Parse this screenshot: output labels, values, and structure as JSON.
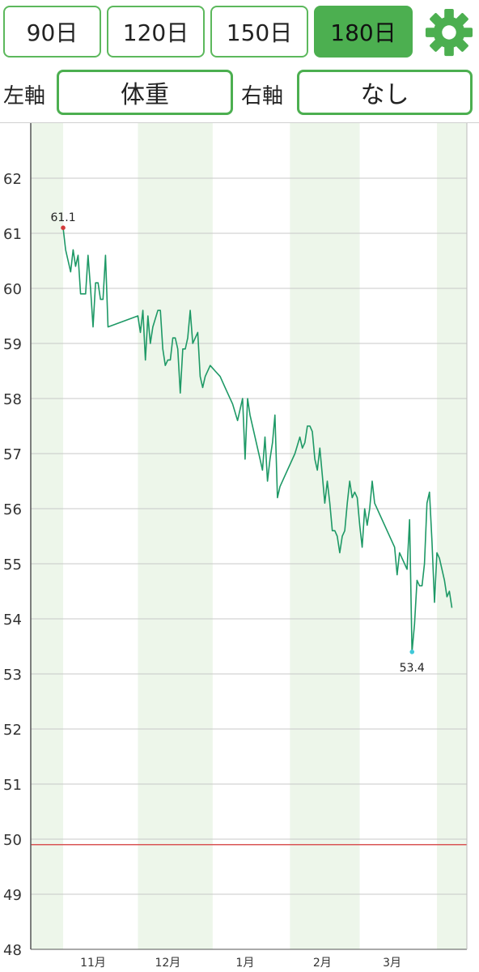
{
  "toolbar": {
    "ranges": [
      {
        "label": "90日",
        "active": false
      },
      {
        "label": "120日",
        "active": false
      },
      {
        "label": "150日",
        "active": false
      },
      {
        "label": "180日",
        "active": true
      }
    ],
    "settings_icon": "gear-icon",
    "accent_color": "#4caf50"
  },
  "axes": {
    "left_label": "左軸",
    "left_value": "体重",
    "right_label": "右軸",
    "right_value": "なし"
  },
  "chart_data": {
    "type": "line",
    "series": [
      {
        "values_by_day": [
          [
            0,
            61.1
          ],
          [
            1,
            60.7
          ],
          [
            2,
            60.5
          ],
          [
            3,
            60.3
          ],
          [
            4,
            60.7
          ],
          [
            5,
            60.4
          ],
          [
            6,
            60.6
          ],
          [
            7,
            59.9
          ],
          [
            9,
            59.9
          ],
          [
            10,
            60.6
          ],
          [
            11,
            60.0
          ],
          [
            12,
            59.3
          ],
          [
            13,
            60.1
          ],
          [
            14,
            60.1
          ],
          [
            15,
            59.8
          ],
          [
            16,
            59.8
          ],
          [
            17,
            60.6
          ],
          [
            18,
            59.3
          ],
          [
            30,
            59.5
          ],
          [
            31,
            59.2
          ],
          [
            32,
            59.6
          ],
          [
            33,
            58.7
          ],
          [
            34,
            59.5
          ],
          [
            35,
            59.0
          ],
          [
            36,
            59.3
          ],
          [
            38,
            59.6
          ],
          [
            39,
            59.6
          ],
          [
            40,
            58.9
          ],
          [
            41,
            58.6
          ],
          [
            42,
            58.7
          ],
          [
            43,
            58.7
          ],
          [
            44,
            59.1
          ],
          [
            45,
            59.1
          ],
          [
            46,
            58.9
          ],
          [
            47,
            58.1
          ],
          [
            48,
            58.9
          ],
          [
            49,
            58.9
          ],
          [
            50,
            59.1
          ],
          [
            51,
            59.6
          ],
          [
            52,
            59.0
          ],
          [
            54,
            59.2
          ],
          [
            55,
            58.4
          ],
          [
            56,
            58.2
          ],
          [
            57,
            58.4
          ],
          [
            59,
            58.6
          ],
          [
            61,
            58.5
          ],
          [
            63,
            58.4
          ],
          [
            65,
            58.2
          ],
          [
            68,
            57.9
          ],
          [
            70,
            57.6
          ],
          [
            72,
            58.0
          ],
          [
            73,
            56.9
          ],
          [
            74,
            58.0
          ],
          [
            75,
            57.7
          ],
          [
            79,
            56.9
          ],
          [
            80,
            56.7
          ],
          [
            81,
            57.3
          ],
          [
            82,
            56.5
          ],
          [
            83,
            56.9
          ],
          [
            84,
            57.2
          ],
          [
            85,
            57.7
          ],
          [
            86,
            56.2
          ],
          [
            87,
            56.4
          ],
          [
            93,
            57.0
          ],
          [
            95,
            57.3
          ],
          [
            96,
            57.1
          ],
          [
            97,
            57.2
          ],
          [
            98,
            57.5
          ],
          [
            99,
            57.5
          ],
          [
            100,
            57.4
          ],
          [
            101,
            56.9
          ],
          [
            102,
            56.7
          ],
          [
            103,
            57.1
          ],
          [
            104,
            56.6
          ],
          [
            105,
            56.1
          ],
          [
            106,
            56.5
          ],
          [
            107,
            56.1
          ],
          [
            108,
            55.6
          ],
          [
            109,
            55.6
          ],
          [
            110,
            55.5
          ],
          [
            111,
            55.2
          ],
          [
            112,
            55.5
          ],
          [
            113,
            55.6
          ],
          [
            114,
            56.1
          ],
          [
            115,
            56.5
          ],
          [
            116,
            56.2
          ],
          [
            117,
            56.3
          ],
          [
            118,
            56.2
          ],
          [
            119,
            55.7
          ],
          [
            120,
            55.3
          ],
          [
            121,
            56.0
          ],
          [
            122,
            55.7
          ],
          [
            123,
            56.0
          ],
          [
            124,
            56.5
          ],
          [
            125,
            56.1
          ],
          [
            133,
            55.3
          ],
          [
            134,
            54.8
          ],
          [
            135,
            55.2
          ],
          [
            136,
            55.1
          ],
          [
            137,
            55.0
          ],
          [
            138,
            54.9
          ],
          [
            139,
            55.8
          ],
          [
            140,
            53.4
          ],
          [
            141,
            53.9
          ],
          [
            142,
            54.7
          ],
          [
            143,
            54.6
          ],
          [
            144,
            54.6
          ],
          [
            145,
            55.0
          ],
          [
            146,
            56.1
          ],
          [
            147,
            56.3
          ],
          [
            148,
            55.4
          ],
          [
            149,
            54.3
          ],
          [
            150,
            55.2
          ],
          [
            151,
            55.1
          ],
          [
            152,
            54.9
          ],
          [
            153,
            54.7
          ],
          [
            154,
            54.4
          ],
          [
            155,
            54.5
          ],
          [
            156,
            54.2
          ]
        ],
        "color": "#1e9966"
      }
    ],
    "ylim": [
      48,
      63
    ],
    "yticks": [
      48,
      49,
      50,
      51,
      52,
      53,
      54,
      55,
      56,
      57,
      58,
      59,
      60,
      61,
      62
    ],
    "xlim": [
      -13,
      162
    ],
    "xtick_labels": [
      {
        "label": "11月",
        "day": 12
      },
      {
        "label": "12月",
        "day": 42
      },
      {
        "label": "1月",
        "day": 73
      },
      {
        "label": "2月",
        "day": 104
      },
      {
        "label": "3月",
        "day": 132
      }
    ],
    "month_bands": [
      [
        -13,
        0
      ],
      [
        30,
        60
      ],
      [
        91,
        119
      ],
      [
        150,
        162
      ]
    ],
    "max_point": {
      "day": 0,
      "value": 61.1,
      "label": "61.1",
      "color": "#d23a3a"
    },
    "min_point": {
      "day": 140,
      "value": 53.4,
      "label": "53.4",
      "color": "#40c8d8"
    },
    "target_line": {
      "value": 49.9,
      "color": "#d95555"
    },
    "grid": true,
    "band_color": "#edf6ea"
  }
}
